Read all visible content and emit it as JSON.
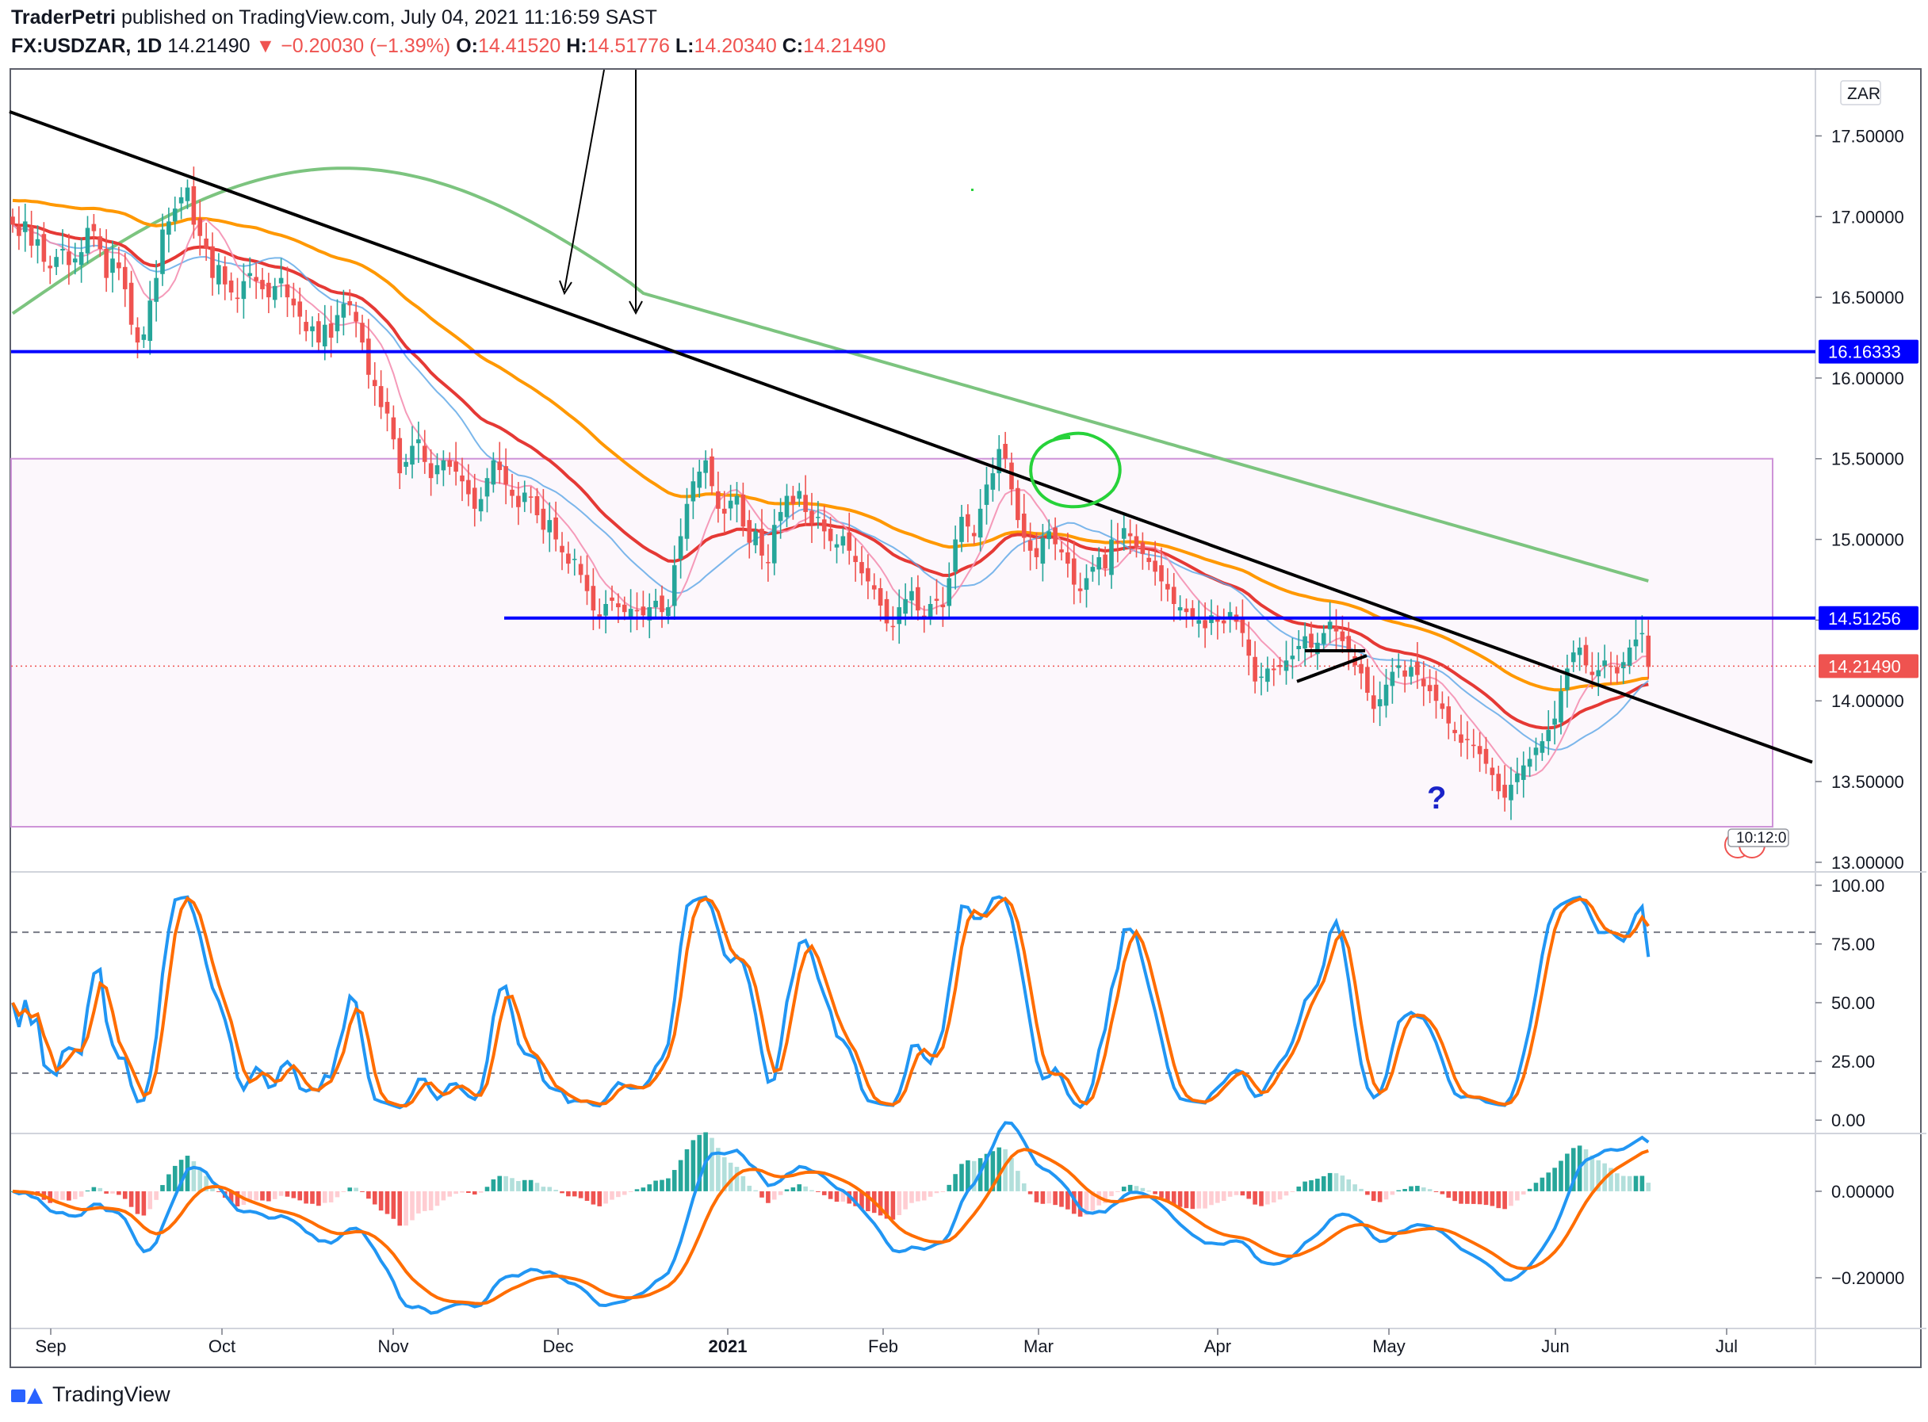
{
  "header": {
    "publisher": "TraderPetri",
    "published_text": "published on TradingView.com, July 04, 2021 11:16:59 SAST",
    "symbol": "FX:USDZAR, 1D",
    "last": "14.21490",
    "change": "−0.20030 (−1.39%)",
    "o_label": "O:",
    "o_value": "14.41520",
    "h_label": "H:",
    "h_value": "14.51776",
    "l_label": "L:",
    "l_value": "14.20340",
    "c_label": "C:",
    "c_value": "14.21490"
  },
  "footer": {
    "brand": "TradingView"
  },
  "colors": {
    "up": "#26a69a",
    "down": "#ef5350",
    "trend": "#000000",
    "level": "#0000ff",
    "ma_red": "#e53935",
    "ma_orange": "#ff9800",
    "ma_green": "#7cc47f",
    "ma_blue": "#5aa5e6",
    "stoch_k": "#2196f3",
    "stoch_d": "#ff6d00",
    "macd": "#2196f3",
    "signal": "#ff6d00"
  },
  "chart_data": {
    "type": "candlestick",
    "symbol": "FX:USDZAR",
    "currency_label": "ZAR",
    "x_months": [
      "Sep",
      "Oct",
      "Nov",
      "Dec",
      "2021",
      "Feb",
      "Mar",
      "Apr",
      "May",
      "Jun",
      "Jul"
    ],
    "y_ticks": [
      "17.50000",
      "17.00000",
      "16.50000",
      "16.00000",
      "15.50000",
      "15.00000",
      "14.50000",
      "14.00000",
      "13.50000",
      "13.00000"
    ],
    "ylim": [
      12.95,
      17.9
    ],
    "price_labels": [
      {
        "value": 16.16333,
        "text": "16.16333",
        "kind": "level"
      },
      {
        "value": 14.51256,
        "text": "14.51256",
        "kind": "level"
      },
      {
        "value": 14.2149,
        "text": "14.21490",
        "kind": "last"
      }
    ],
    "levels": [
      16.16333,
      14.51256
    ],
    "question_text": "?",
    "badge_text": "10:12:0",
    "closes": [
      16.95,
      16.88,
      16.97,
      16.82,
      16.86,
      16.72,
      16.68,
      16.75,
      16.8,
      16.7,
      16.74,
      16.78,
      16.93,
      16.91,
      16.8,
      16.62,
      16.74,
      16.68,
      16.55,
      16.33,
      16.22,
      16.27,
      16.48,
      16.62,
      16.92,
      16.97,
      17.05,
      17.12,
      17.18,
      16.95,
      16.88,
      16.8,
      16.62,
      16.7,
      16.58,
      16.53,
      16.49,
      16.6,
      16.65,
      16.6,
      16.55,
      16.5,
      16.57,
      16.62,
      16.5,
      16.45,
      16.38,
      16.29,
      16.32,
      16.22,
      16.33,
      16.25,
      16.39,
      16.46,
      16.45,
      16.35,
      16.22,
      16.02,
      15.95,
      15.82,
      15.78,
      15.62,
      15.41,
      15.48,
      15.58,
      15.62,
      15.48,
      15.38,
      15.46,
      15.49,
      15.45,
      15.42,
      15.36,
      15.28,
      15.19,
      15.25,
      15.38,
      15.49,
      15.43,
      15.34,
      15.27,
      15.2,
      15.29,
      15.26,
      15.15,
      15.06,
      15.12,
      15.0,
      14.92,
      14.85,
      14.88,
      14.78,
      14.68,
      14.56,
      14.52,
      14.6,
      14.62,
      14.58,
      14.55,
      14.57,
      14.56,
      14.53,
      14.58,
      14.62,
      14.55,
      14.58,
      14.84,
      15.02,
      15.22,
      15.36,
      15.42,
      15.49,
      15.33,
      15.19,
      15.16,
      15.24,
      15.27,
      15.08,
      14.98,
      15.05,
      14.9,
      14.86,
      15.09,
      15.17,
      15.27,
      15.22,
      15.3,
      15.17,
      15.1,
      15.14,
      15.05,
      14.99,
      14.97,
      15.02,
      14.93,
      14.86,
      14.79,
      14.74,
      14.69,
      14.59,
      14.48,
      14.46,
      14.58,
      14.63,
      14.68,
      14.56,
      14.52,
      14.6,
      14.62,
      14.58,
      14.76,
      15.0,
      15.14,
      15.08,
      15.02,
      15.19,
      15.34,
      15.41,
      15.56,
      15.5,
      15.31,
      15.12,
      15.01,
      14.93,
      14.89,
      15.01,
      15.05,
      14.97,
      14.92,
      14.85,
      14.72,
      14.68,
      14.76,
      14.83,
      14.89,
      14.82,
      15.0,
      14.98,
      15.07,
      15.02,
      14.95,
      14.91,
      14.86,
      14.8,
      14.74,
      14.69,
      14.6,
      14.58,
      14.55,
      14.51,
      14.5,
      14.45,
      14.53,
      14.49,
      14.48,
      14.55,
      14.49,
      14.42,
      14.28,
      14.12,
      14.15,
      14.2,
      14.19,
      14.21,
      14.25,
      14.28,
      14.34,
      14.4,
      14.33,
      14.36,
      14.42,
      14.49,
      14.43,
      14.37,
      14.3,
      14.22,
      14.17,
      14.05,
      13.95,
      14.01,
      14.1,
      14.18,
      14.22,
      14.15,
      14.21,
      14.16,
      14.09,
      14.06,
      14.0,
      13.95,
      13.86,
      13.8,
      13.74,
      13.76,
      13.72,
      13.67,
      13.61,
      13.54,
      13.44,
      13.4,
      13.48,
      13.55,
      13.6,
      13.64,
      13.71,
      13.75,
      13.82,
      13.89,
      14.06,
      14.2,
      14.3,
      14.33,
      14.22,
      14.16,
      14.19,
      14.25,
      14.21,
      14.17,
      14.24,
      14.33,
      14.38,
      14.42,
      14.21
    ]
  },
  "stoch_data": {
    "type": "line",
    "y_ticks": [
      "100.00",
      "75.00",
      "50.00",
      "25.00",
      "0.00"
    ],
    "ylim": [
      -5,
      105
    ],
    "bands": [
      80,
      20
    ]
  },
  "macd_data": {
    "type": "bar",
    "y_ticks": [
      "0.00000",
      "−0.20000"
    ],
    "ylim": [
      -0.31,
      0.13
    ]
  }
}
